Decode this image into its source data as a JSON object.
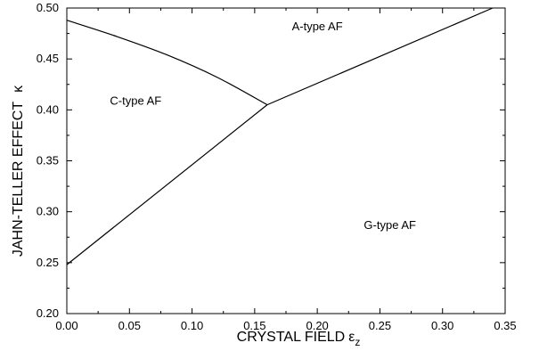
{
  "chart_data": {
    "type": "line",
    "xlabel": "CRYSTAL FIELD",
    "xlabel_symbol": "ε",
    "xlabel_subscript": "z",
    "ylabel": "JAHN-TELLER EFFECT",
    "ylabel_symbol": "κ",
    "xlim": [
      0.0,
      0.35
    ],
    "ylim": [
      0.2,
      0.5
    ],
    "xticks": [
      "0.00",
      "0.05",
      "0.10",
      "0.15",
      "0.20",
      "0.25",
      "0.30",
      "0.35"
    ],
    "yticks": [
      "0.20",
      "0.25",
      "0.30",
      "0.35",
      "0.40",
      "0.45",
      "0.50"
    ],
    "grid": false,
    "series": [
      {
        "x": [
          0.0,
          0.04,
          0.08,
          0.12,
          0.16
        ],
        "y": [
          0.488,
          0.472,
          0.454,
          0.432,
          0.405
        ]
      },
      {
        "x": [
          0.0,
          0.16
        ],
        "y": [
          0.248,
          0.405
        ]
      },
      {
        "x": [
          0.16,
          0.34
        ],
        "y": [
          0.405,
          0.5
        ]
      }
    ],
    "region_labels": [
      {
        "text": "A-type AF",
        "x": 0.2,
        "y": 0.478
      },
      {
        "text": "C-type AF",
        "x": 0.055,
        "y": 0.405
      },
      {
        "text": "G-type AF",
        "x": 0.258,
        "y": 0.283
      }
    ],
    "phase_colors": {
      "line": "#000000",
      "background": "#ffffff"
    }
  }
}
